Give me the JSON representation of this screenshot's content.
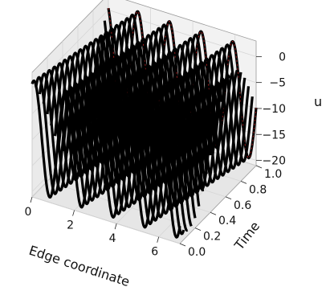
{
  "chart_data": {
    "type": "line3d",
    "title": "",
    "xlabel": "Edge coordinate",
    "ylabel": "Time",
    "zlabel": "u",
    "xlim": [
      0,
      7
    ],
    "ylim": [
      0,
      1
    ],
    "zlim": [
      -21,
      3
    ],
    "x_ticks": [
      0,
      2,
      4,
      6
    ],
    "x_tick_labels": [
      "0",
      "2",
      "4",
      "6"
    ],
    "y_ticks": [
      0.0,
      0.2,
      0.4,
      0.6,
      0.8,
      1.0
    ],
    "y_tick_labels": [
      "0.0",
      "0.2",
      "0.4",
      "0.6",
      "0.8",
      "1.0"
    ],
    "z_ticks": [
      0,
      -5,
      -10,
      -15,
      -20
    ],
    "z_tick_labels": [
      "0",
      "−5",
      "−10",
      "−15",
      "−20"
    ],
    "grid": true,
    "series_count": 21,
    "time_values": [
      0.0,
      0.05,
      0.1,
      0.15,
      0.2,
      0.25,
      0.3,
      0.35,
      0.4,
      0.45,
      0.5,
      0.55,
      0.6,
      0.65,
      0.7,
      0.75,
      0.8,
      0.85,
      0.9,
      0.95,
      1.0
    ],
    "wave": {
      "x_range": [
        0,
        7
      ],
      "u_max": 1.5,
      "u_min": -20,
      "wavelength": 1.5,
      "phase_speed_per_time": 1.3
    },
    "colors": {
      "curves": "#000000",
      "highlight": "#d62728",
      "pane": "#f2f2f2"
    }
  }
}
